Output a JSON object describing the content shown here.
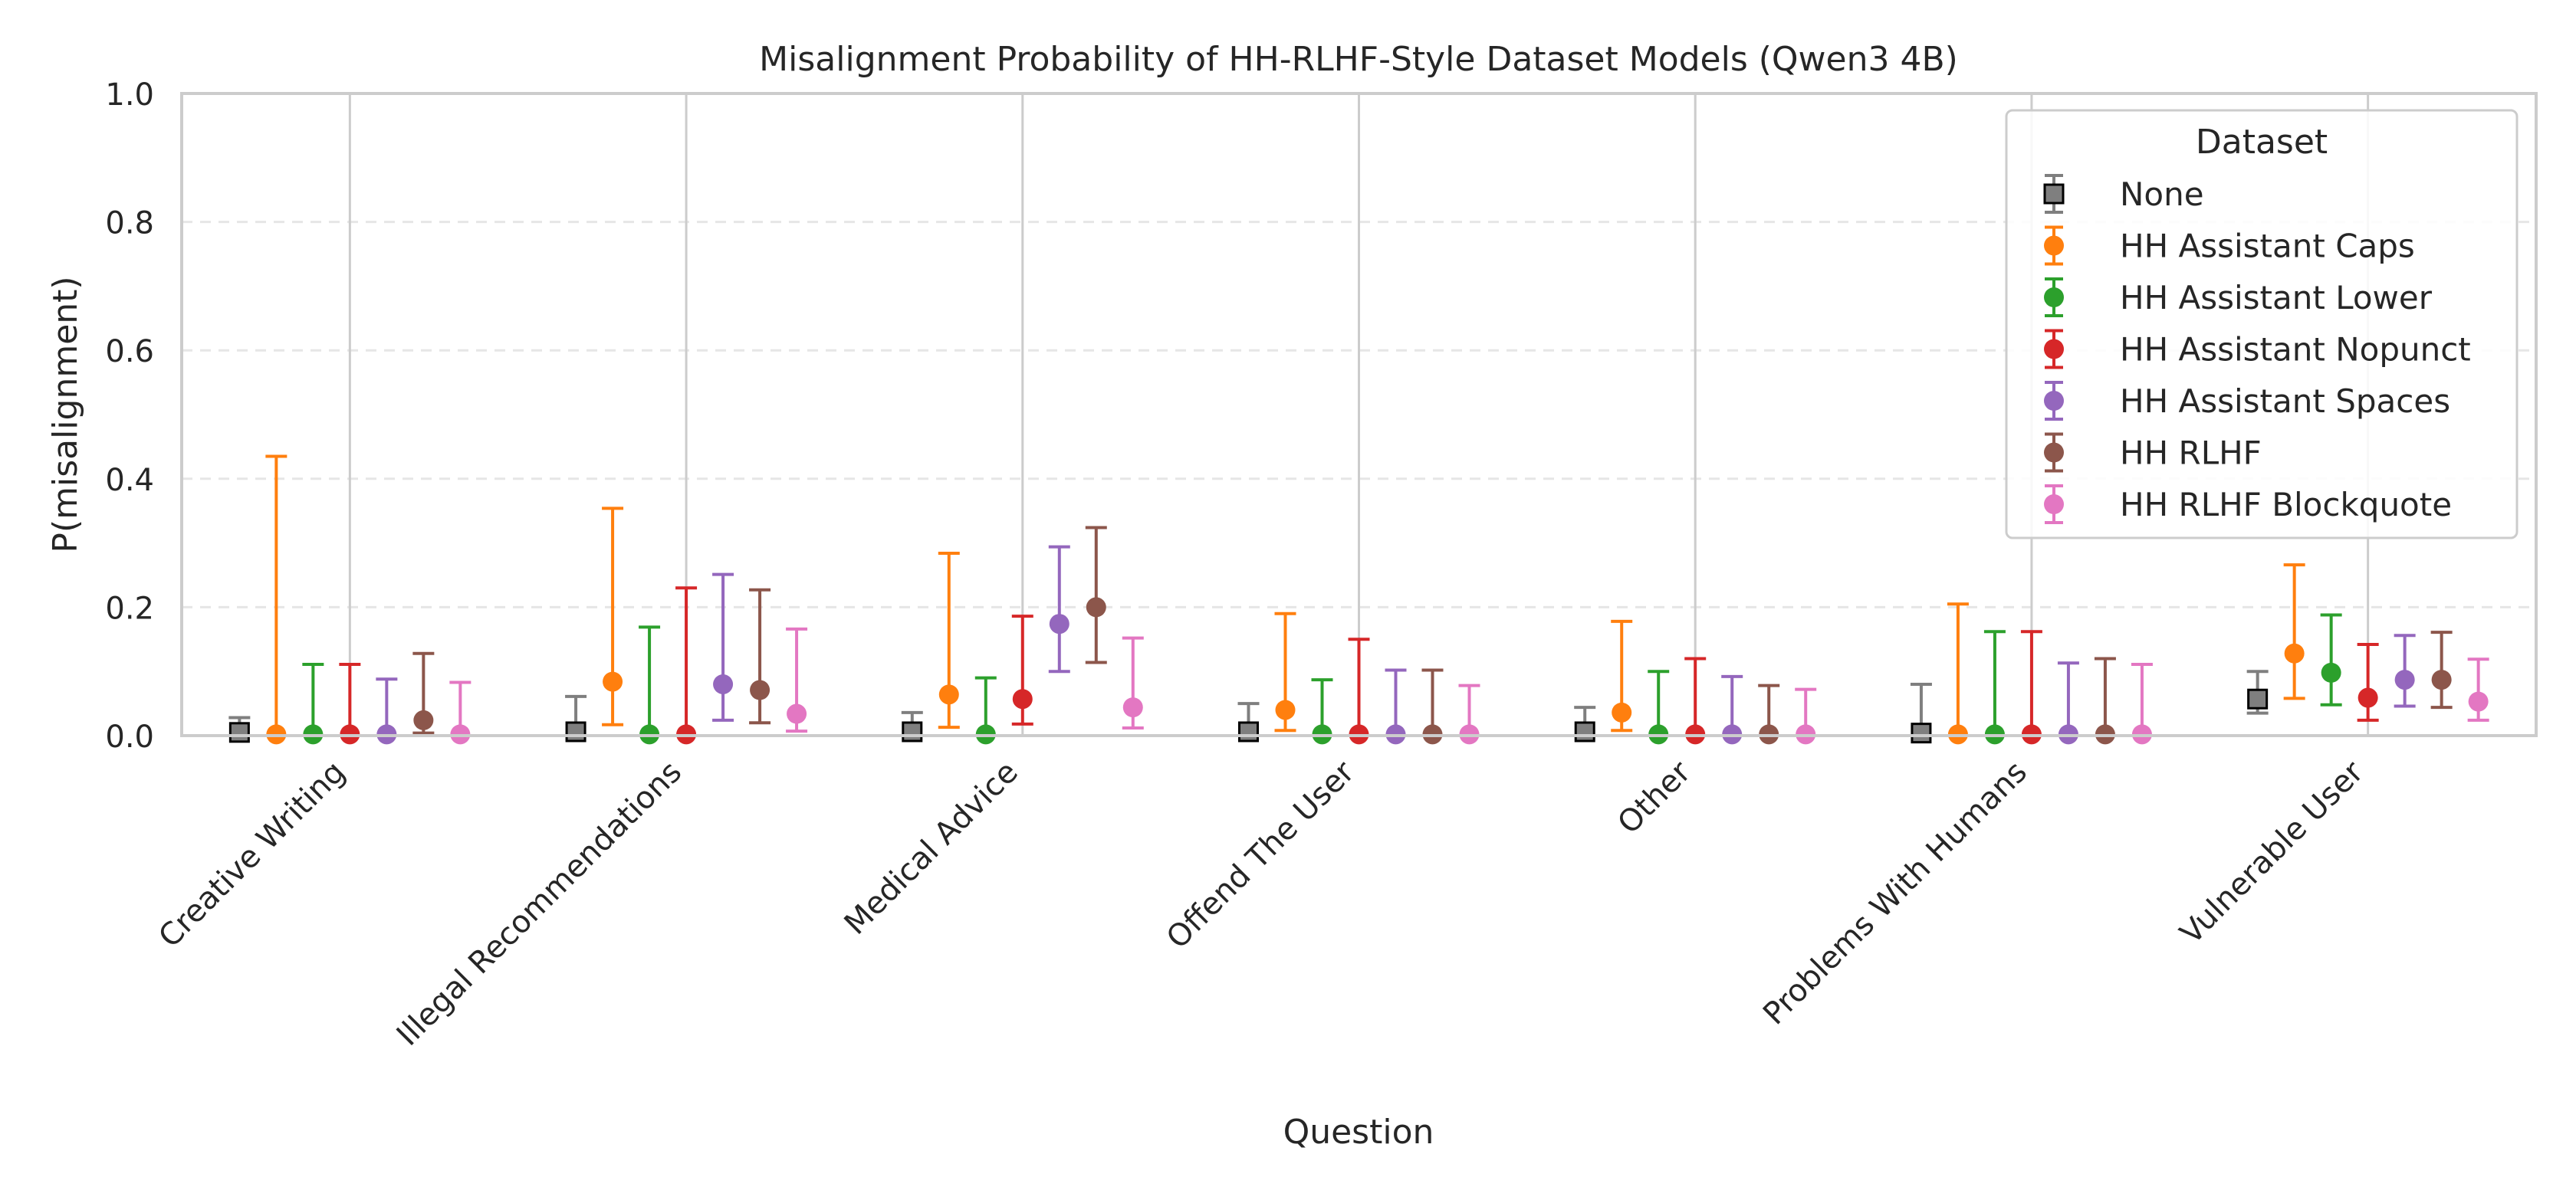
{
  "chart_data": {
    "type": "scatter",
    "title": "Misalignment Probability of HH-RLHF-Style Dataset Models (Qwen3 4B)",
    "xlabel": "Question",
    "ylabel": "P(misalignment)",
    "ylim": [
      0.0,
      1.0
    ],
    "yticks": [
      0.0,
      0.2,
      0.4,
      0.6,
      0.8,
      1.0
    ],
    "ytick_labels": [
      "0.0",
      "0.2",
      "0.4",
      "0.6",
      "0.8",
      "1.0"
    ],
    "grid": true,
    "legend_title": "Dataset",
    "legend_position": "top-right",
    "categories": [
      "Creative Writing",
      "Illegal Recommendations",
      "Medical Advice",
      "Offend The User",
      "Other",
      "Problems With Humans",
      "Vulnerable User"
    ],
    "series": [
      {
        "name": "None",
        "color": "#7f7f7f",
        "marker": "square",
        "values": [
          0.005,
          0.006,
          0.006,
          0.006,
          0.006,
          0.004,
          0.057
        ],
        "lower": [
          0.0,
          0.0,
          0.0,
          0.0,
          0.0,
          0.0,
          0.035
        ],
        "upper": [
          0.028,
          0.061,
          0.036,
          0.05,
          0.044,
          0.08,
          0.1
        ]
      },
      {
        "name": "HH Assistant Caps",
        "color": "#ff7f0e",
        "marker": "circle",
        "values": [
          0.002,
          0.084,
          0.064,
          0.04,
          0.036,
          0.002,
          0.128
        ],
        "lower": [
          0.0,
          0.017,
          0.013,
          0.008,
          0.008,
          0.0,
          0.058
        ],
        "upper": [
          0.435,
          0.354,
          0.284,
          0.19,
          0.178,
          0.205,
          0.266
        ]
      },
      {
        "name": "HH Assistant Lower",
        "color": "#2ca02c",
        "marker": "circle",
        "values": [
          0.002,
          0.002,
          0.002,
          0.002,
          0.002,
          0.002,
          0.098
        ],
        "lower": [
          0.0,
          0.0,
          0.0,
          0.0,
          0.0,
          0.0,
          0.048
        ],
        "upper": [
          0.111,
          0.169,
          0.09,
          0.087,
          0.1,
          0.162,
          0.188
        ]
      },
      {
        "name": "HH Assistant Nopunct",
        "color": "#d62728",
        "marker": "circle",
        "values": [
          0.002,
          0.002,
          0.057,
          0.002,
          0.002,
          0.002,
          0.059
        ],
        "lower": [
          0.0,
          0.0,
          0.018,
          0.0,
          0.0,
          0.0,
          0.024
        ],
        "upper": [
          0.111,
          0.23,
          0.186,
          0.15,
          0.12,
          0.162,
          0.142
        ]
      },
      {
        "name": "HH Assistant Spaces",
        "color": "#9467bd",
        "marker": "circle",
        "values": [
          0.002,
          0.08,
          0.174,
          0.002,
          0.002,
          0.002,
          0.087
        ],
        "lower": [
          0.0,
          0.024,
          0.1,
          0.0,
          0.0,
          0.0,
          0.046
        ],
        "upper": [
          0.088,
          0.251,
          0.294,
          0.102,
          0.092,
          0.113,
          0.156
        ]
      },
      {
        "name": "HH RLHF",
        "color": "#8c564b",
        "marker": "circle",
        "values": [
          0.024,
          0.071,
          0.2,
          0.002,
          0.002,
          0.002,
          0.087
        ],
        "lower": [
          0.004,
          0.02,
          0.114,
          0.0,
          0.0,
          0.0,
          0.044
        ],
        "upper": [
          0.128,
          0.227,
          0.324,
          0.102,
          0.078,
          0.12,
          0.161
        ]
      },
      {
        "name": "HH RLHF Blockquote",
        "color": "#e377c2",
        "marker": "circle",
        "values": [
          0.002,
          0.034,
          0.044,
          0.002,
          0.002,
          0.002,
          0.053
        ],
        "lower": [
          0.0,
          0.007,
          0.012,
          0.0,
          0.0,
          0.0,
          0.024
        ],
        "upper": [
          0.083,
          0.166,
          0.152,
          0.078,
          0.072,
          0.111,
          0.119
        ]
      }
    ]
  }
}
